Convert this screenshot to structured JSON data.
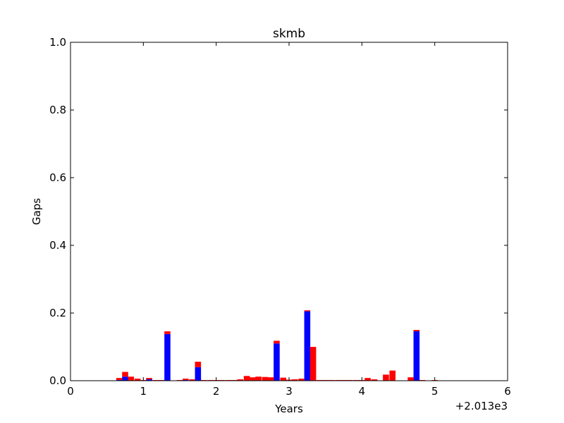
{
  "chart_data": {
    "type": "bar",
    "title": "skmb",
    "xlabel": "Years",
    "ylabel": "Gaps",
    "x_offset_label": "+2.013e3",
    "xlim": [
      0,
      6
    ],
    "ylim": [
      0,
      1.0
    ],
    "xticks": [
      "0",
      "1",
      "2",
      "3",
      "4",
      "5",
      "6"
    ],
    "yticks": [
      "0.0",
      "0.2",
      "0.4",
      "0.6",
      "0.8",
      "1.0"
    ],
    "grid": false,
    "legend": "none",
    "bar_width": 0.083,
    "stacked": true,
    "colors": {
      "red_series": "#ff0000",
      "blue_series": "#0000ff"
    },
    "series": [
      {
        "color": "#0000ff",
        "x": [
          0.67,
          0.75,
          1.08,
          1.33,
          1.58,
          1.75,
          2.83,
          3.25,
          4.75
        ],
        "values": [
          0.002,
          0.012,
          0.004,
          0.138,
          0.002,
          0.04,
          0.11,
          0.205,
          0.146
        ]
      },
      {
        "color": "#ff0000",
        "x": [
          0.67,
          0.75,
          0.83,
          0.92,
          1.0,
          1.08,
          1.17,
          1.25,
          1.33,
          1.5,
          1.58,
          1.67,
          1.75,
          1.83,
          1.92,
          2.0,
          2.08,
          2.17,
          2.25,
          2.33,
          2.42,
          2.5,
          2.58,
          2.67,
          2.75,
          2.83,
          2.92,
          3.0,
          3.08,
          3.17,
          3.25,
          3.33,
          3.42,
          3.5,
          3.58,
          3.67,
          3.75,
          3.83,
          3.92,
          4.0,
          4.08,
          4.17,
          4.25,
          4.33,
          4.42,
          4.58,
          4.67,
          4.75,
          4.83,
          5.0
        ],
        "values": [
          0.006,
          0.014,
          0.012,
          0.006,
          0.002,
          0.004,
          0.002,
          0.002,
          0.008,
          0.002,
          0.004,
          0.004,
          0.016,
          0.002,
          0.002,
          0.002,
          0.002,
          0.002,
          0.002,
          0.004,
          0.014,
          0.01,
          0.012,
          0.011,
          0.01,
          0.008,
          0.009,
          0.003,
          0.004,
          0.006,
          0.003,
          0.1,
          0.002,
          0.002,
          0.002,
          0.002,
          0.002,
          0.002,
          0.002,
          0.002,
          0.008,
          0.004,
          0.001,
          0.018,
          0.03,
          0.001,
          0.01,
          0.004,
          0.002,
          0.002
        ]
      }
    ]
  }
}
